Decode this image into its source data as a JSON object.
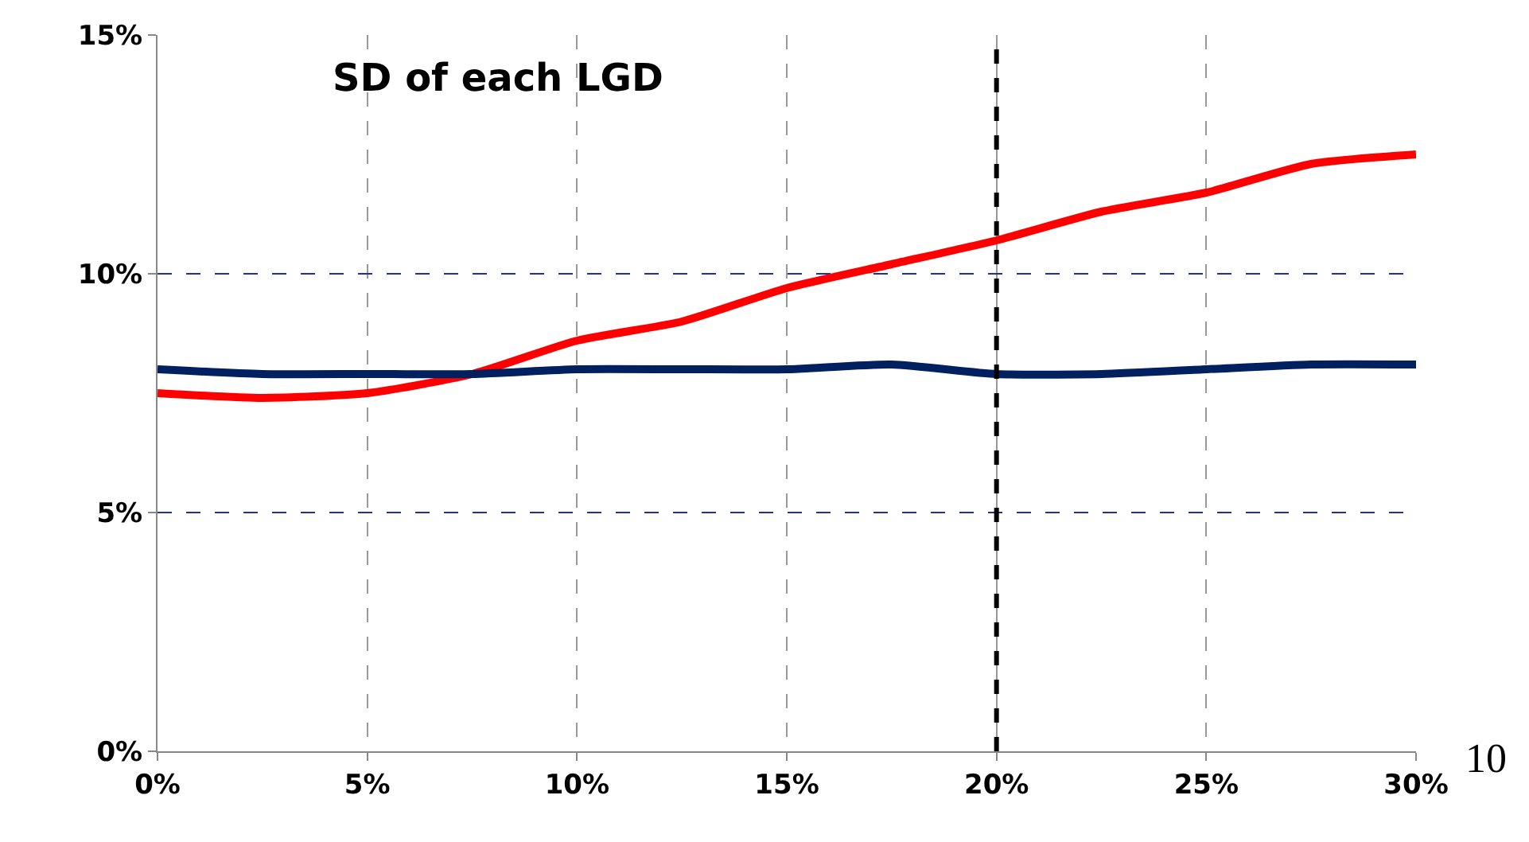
{
  "chart_data": {
    "type": "line",
    "x": [
      0,
      2.5,
      5,
      7.5,
      10,
      12.5,
      15,
      17.5,
      20,
      22.5,
      25,
      27.5,
      30
    ],
    "series": [
      {
        "color": "#ff0000",
        "values": [
          7.5,
          7.4,
          7.5,
          7.9,
          8.6,
          9.0,
          9.7,
          10.2,
          10.7,
          11.3,
          11.7,
          12.3,
          12.5
        ]
      },
      {
        "color": "#002060",
        "values": [
          8.0,
          7.9,
          7.9,
          7.9,
          8.0,
          8.0,
          8.0,
          8.1,
          7.9,
          7.9,
          8.0,
          8.1,
          8.1
        ]
      }
    ],
    "xlim": [
      0,
      30
    ],
    "xticks": [
      {
        "value": 0,
        "label": "0%"
      },
      {
        "value": 5,
        "label": "5%"
      },
      {
        "value": 10,
        "label": "10%"
      },
      {
        "value": 15,
        "label": "15%"
      },
      {
        "value": 20,
        "label": "20%"
      },
      {
        "value": 25,
        "label": "25%"
      },
      {
        "value": 30,
        "label": "30%"
      }
    ],
    "ylim": [
      0,
      15
    ],
    "yticks": [
      {
        "value": 0,
        "label": "0%"
      },
      {
        "value": 5,
        "label": "5%"
      },
      {
        "value": 10,
        "label": "10%"
      },
      {
        "value": 15,
        "label": "15%"
      }
    ],
    "ref_lines": [
      {
        "axis": "x",
        "value": 20,
        "color": "#000000",
        "line_style": "dashed"
      }
    ],
    "annotations": [
      "SD of each LGD",
      "10"
    ],
    "grid": true,
    "line_style": "solid",
    "marker": "none"
  }
}
